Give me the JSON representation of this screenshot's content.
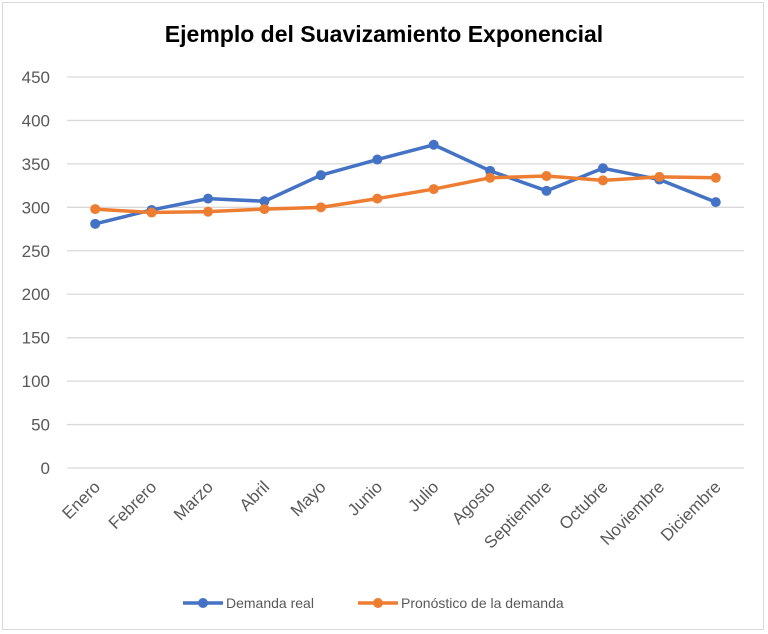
{
  "chart_data": {
    "type": "line",
    "title": "Ejemplo del Suavizamiento Exponencial",
    "xlabel": "",
    "ylabel": "",
    "categories": [
      "Enero",
      "Febrero",
      "Marzo",
      "Abril",
      "Mayo",
      "Junio",
      "Julio",
      "Agosto",
      "Septiembre",
      "Octubre",
      "Noviembre",
      "Diciembre"
    ],
    "ylim": [
      0,
      450
    ],
    "yticks": [
      0,
      50,
      100,
      150,
      200,
      250,
      300,
      350,
      400,
      450
    ],
    "grid": true,
    "legend_position": "bottom",
    "series": [
      {
        "name": "Demanda real",
        "color": "#4472C4",
        "values": [
          281,
          297,
          310,
          307,
          337,
          355,
          372,
          342,
          319,
          345,
          332,
          306
        ]
      },
      {
        "name": "Pronóstico de la demanda",
        "color": "#ED7D31",
        "values": [
          298,
          294,
          295,
          298,
          300,
          310,
          321,
          334,
          336,
          331,
          335,
          334
        ]
      }
    ]
  }
}
